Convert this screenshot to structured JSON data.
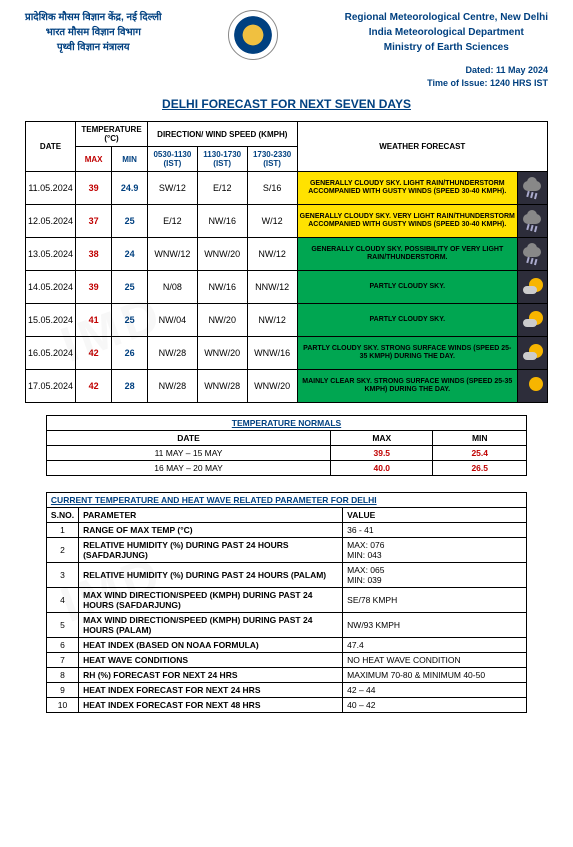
{
  "header": {
    "left_lines": [
      "प्रादेशिक मौसम विज्ञान केंद्र, नई दिल्ली",
      "भारत मौसम विज्ञान विभाग",
      "पृथ्वी विज्ञान मंत्रालय"
    ],
    "right_lines": [
      "Regional Meteorological Centre, New Delhi",
      "India Meteorological Department",
      "Ministry of Earth Sciences"
    ],
    "dated": "Dated: 11 May 2024",
    "time": "Time of Issue: 1240 HRS IST"
  },
  "title": "DELHI FORECAST FOR NEXT SEVEN DAYS",
  "forecast": {
    "headers": {
      "date": "DATE",
      "temp_group": "TEMPERATURE (°C)",
      "max": "MAX",
      "min": "MIN",
      "wind_group": "DIRECTION/ WIND SPEED (KMPH)",
      "slot1": "0530-1130 (IST)",
      "slot2": "1130-1730 (IST)",
      "slot3": "1730-2330 (IST)",
      "wf": "WEATHER FORECAST"
    },
    "rows": [
      {
        "date": "11.05.2024",
        "max": "39",
        "min": "24.9",
        "w1": "SW/12",
        "w2": "E/12",
        "w3": "S/16",
        "text": "GENERALLY CLOUDY SKY. LIGHT RAIN/THUNDERSTORM ACCOMPANIED WITH GUSTY WINDS (SPEED 30-40 KMPH).",
        "bg": "yellow",
        "icon": "storm"
      },
      {
        "date": "12.05.2024",
        "max": "37",
        "min": "25",
        "w1": "E/12",
        "w2": "NW/16",
        "w3": "W/12",
        "text": "GENERALLY CLOUDY SKY. VERY LIGHT RAIN/THUNDERSTORM ACCOMPANIED WITH GUSTY WINDS (SPEED 30-40 KMPH).",
        "bg": "yellow",
        "icon": "storm"
      },
      {
        "date": "13.05.2024",
        "max": "38",
        "min": "24",
        "w1": "WNW/12",
        "w2": "WNW/20",
        "w3": "NW/12",
        "text": "GENERALLY CLOUDY SKY. POSSIBILITY OF VERY LIGHT RAIN/THUNDERSTORM.",
        "bg": "green",
        "icon": "storm"
      },
      {
        "date": "14.05.2024",
        "max": "39",
        "min": "25",
        "w1": "N/08",
        "w2": "NW/16",
        "w3": "NNW/12",
        "text": "PARTLY CLOUDY SKY.",
        "bg": "green",
        "icon": "partly"
      },
      {
        "date": "15.05.2024",
        "max": "41",
        "min": "25",
        "w1": "NW/04",
        "w2": "NW/20",
        "w3": "NW/12",
        "text": "PARTLY CLOUDY SKY.",
        "bg": "green",
        "icon": "partly"
      },
      {
        "date": "16.05.2024",
        "max": "42",
        "min": "26",
        "w1": "NW/28",
        "w2": "WNW/20",
        "w3": "WNW/16",
        "text": "PARTLY CLOUDY SKY. STRONG SURFACE WINDS (SPEED 25-35 KMPH) DURING THE DAY.",
        "bg": "green",
        "icon": "partly"
      },
      {
        "date": "17.05.2024",
        "max": "42",
        "min": "28",
        "w1": "NW/28",
        "w2": "WNW/28",
        "w3": "WNW/20",
        "text": "MAINLY CLEAR SKY. STRONG SURFACE WINDS (SPEED 25-35 KMPH) DURING THE DAY.",
        "bg": "green",
        "icon": "sunny"
      }
    ]
  },
  "normals": {
    "title": "TEMPERATURE NORMALS",
    "headers": {
      "date": "DATE",
      "max": "MAX",
      "min": "MIN"
    },
    "rows": [
      {
        "date": "11 MAY – 15 MAY",
        "max": "39.5",
        "min": "25.4"
      },
      {
        "date": "16 MAY – 20 MAY",
        "max": "40.0",
        "min": "26.5"
      }
    ]
  },
  "params": {
    "title": "CURRENT TEMPERATURE AND HEAT WAVE RELATED PARAMETER FOR DELHI",
    "headers": {
      "sno": "S.NO.",
      "param": "PARAMETER",
      "value": "VALUE"
    },
    "rows": [
      {
        "sno": "1",
        "param": "RANGE OF MAX TEMP (°C)",
        "value": "36 - 41"
      },
      {
        "sno": "2",
        "param": "RELATIVE HUMIDITY (%) DURING PAST 24 HOURS (SAFDARJUNG)",
        "value": "MAX: 076\nMIN:  043"
      },
      {
        "sno": "3",
        "param": "RELATIVE HUMIDITY (%) DURING PAST 24 HOURS (PALAM)",
        "value": "MAX: 065\nMIN:  039"
      },
      {
        "sno": "4",
        "param": "MAX WIND DIRECTION/SPEED (KMPH) DURING PAST 24 HOURS (SAFDARJUNG)",
        "value": "SE/78 KMPH"
      },
      {
        "sno": "5",
        "param": "MAX WIND DIRECTION/SPEED (KMPH) DURING PAST 24 HOURS (PALAM)",
        "value": "NW/93 KMPH"
      },
      {
        "sno": "6",
        "param": "HEAT INDEX (BASED ON NOAA FORMULA)",
        "value": "47.4"
      },
      {
        "sno": "7",
        "param": "HEAT WAVE CONDITIONS",
        "value": "NO HEAT WAVE CONDITION"
      },
      {
        "sno": "8",
        "param": "RH (%) FORECAST FOR NEXT 24 HRS",
        "value": "MAXIMUM 70-80 & MINIMUM 40-50"
      },
      {
        "sno": "9",
        "param": "HEAT INDEX FORECAST FOR NEXT 24 HRS",
        "value": "42 – 44"
      },
      {
        "sno": "10",
        "param": "HEAT INDEX FORECAST FOR NEXT 48 HRS",
        "value": "40 – 42"
      }
    ]
  },
  "colors": {
    "brand": "#004080",
    "max": "#c00000",
    "yellow_bg": "#ffe200",
    "green_bg": "#00a651",
    "icon_bg": "#2d2d3a"
  }
}
